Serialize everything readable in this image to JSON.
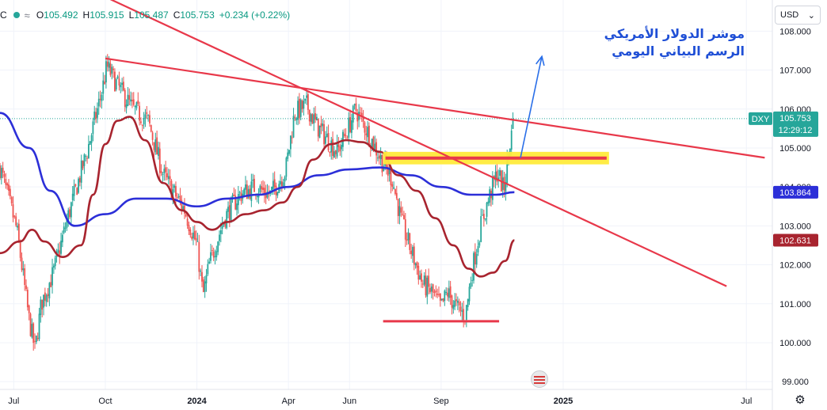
{
  "legend": {
    "symbol": "C",
    "wave": "≈",
    "o_label": "O",
    "o_value": "105.492",
    "h_label": "H",
    "h_value": "105.915",
    "l_label": "L",
    "l_value": "105.487",
    "c_label": "C",
    "c_value": "105.753",
    "change": "+0.234 (+0.22%)"
  },
  "currency_selector": {
    "value": "USD",
    "icon": "chevron-down-icon"
  },
  "annotation": {
    "line1": "موشر الدولار الأمريكي",
    "line2": "الرسم البياني اليومي"
  },
  "price_labels": {
    "symbol_tag": "DXY",
    "last_price": "105.753",
    "countdown": "12:29:12",
    "ma_fast": "103.864",
    "ma_slow": "102.631"
  },
  "colors": {
    "up": "#26a69a",
    "down": "#ef5350",
    "ma_fast": "#2c2fd8",
    "ma_slow": "#a8242f",
    "trendline": "#e8384a",
    "zone_fill": "#ffeb3b",
    "arrow": "#2a6fe8"
  },
  "chart_data": {
    "type": "candlestick",
    "ylim": [
      98.8,
      108.8
    ],
    "yticks": [
      "108.000",
      "107.000",
      "106.000",
      "105.000",
      "104.000",
      "103.000",
      "102.000",
      "101.000",
      "100.000",
      "99.000"
    ],
    "yticks_values": [
      108,
      107,
      106,
      105,
      104,
      103,
      102,
      101,
      100,
      99
    ],
    "xticks": [
      {
        "label": "Jul",
        "x": 0
      },
      {
        "label": "Oct",
        "x": 3
      },
      {
        "label": "2024",
        "x": 6
      },
      {
        "label": "Apr",
        "x": 9
      },
      {
        "label": "Jun",
        "x": 11
      },
      {
        "label": "Sep",
        "x": 14
      },
      {
        "label": "2025",
        "x": 18
      },
      {
        "label": "Jul",
        "x": 24
      }
    ],
    "xticks_note": "x in months since the Jul tick",
    "xlim": [
      -0.45,
      24.85
    ],
    "anchors": [
      [
        -0.45,
        104.5
      ],
      [
        0.1,
        102.9
      ],
      [
        0.5,
        100.6
      ],
      [
        0.7,
        99.8
      ],
      [
        0.9,
        101.0
      ],
      [
        1.3,
        101.8
      ],
      [
        1.8,
        103.3
      ],
      [
        2.4,
        104.9
      ],
      [
        2.9,
        106.5
      ],
      [
        3.05,
        107.1
      ],
      [
        3.4,
        106.6
      ],
      [
        3.9,
        106.0
      ],
      [
        4.4,
        105.7
      ],
      [
        4.9,
        104.3
      ],
      [
        5.6,
        103.4
      ],
      [
        6.0,
        102.5
      ],
      [
        6.2,
        101.2
      ],
      [
        6.4,
        102.0
      ],
      [
        6.9,
        103.2
      ],
      [
        7.4,
        103.8
      ],
      [
        7.9,
        104.0
      ],
      [
        8.4,
        103.8
      ],
      [
        8.9,
        104.4
      ],
      [
        9.2,
        105.9
      ],
      [
        9.6,
        106.1
      ],
      [
        9.9,
        105.6
      ],
      [
        10.2,
        105.3
      ],
      [
        10.6,
        104.9
      ],
      [
        10.9,
        105.4
      ],
      [
        11.2,
        106.0
      ],
      [
        11.6,
        105.4
      ],
      [
        12.1,
        104.6
      ],
      [
        12.4,
        104.2
      ],
      [
        12.7,
        103.1
      ],
      [
        13.0,
        102.4
      ],
      [
        13.4,
        101.5
      ],
      [
        13.7,
        101.3
      ],
      [
        14.0,
        100.9
      ],
      [
        14.2,
        101.3
      ],
      [
        14.5,
        100.9
      ],
      [
        14.8,
        100.7
      ],
      [
        15.0,
        101.8
      ],
      [
        15.3,
        103.0
      ],
      [
        15.6,
        103.8
      ],
      [
        15.85,
        104.4
      ],
      [
        16.05,
        103.9
      ],
      [
        16.25,
        105.1
      ],
      [
        16.4,
        105.75
      ]
    ],
    "last_candle": {
      "open": 105.492,
      "high": 105.915,
      "low": 105.487,
      "close": 105.753
    },
    "series": [
      {
        "name": "",
        "role": "ma_fast",
        "points": [
          [
            -0.45,
            105.9
          ],
          [
            0.5,
            105.0
          ],
          [
            1.2,
            103.9
          ],
          [
            2.0,
            103.0
          ],
          [
            3.0,
            103.3
          ],
          [
            4.0,
            103.7
          ],
          [
            5.0,
            103.7
          ],
          [
            6.0,
            103.5
          ],
          [
            7.0,
            103.7
          ],
          [
            8.0,
            103.8
          ],
          [
            9.0,
            104.0
          ],
          [
            10.0,
            104.3
          ],
          [
            11.0,
            104.45
          ],
          [
            12.0,
            104.5
          ],
          [
            13.0,
            104.3
          ],
          [
            14.0,
            104.0
          ],
          [
            15.0,
            103.8
          ],
          [
            15.8,
            103.8
          ],
          [
            16.4,
            103.864
          ]
        ]
      },
      {
        "name": "",
        "role": "ma_slow",
        "points": [
          [
            -0.45,
            102.3
          ],
          [
            0.2,
            102.6
          ],
          [
            0.6,
            102.9
          ],
          [
            1.0,
            102.6
          ],
          [
            1.6,
            102.2
          ],
          [
            2.2,
            102.5
          ],
          [
            2.6,
            103.8
          ],
          [
            3.0,
            105.1
          ],
          [
            3.4,
            105.7
          ],
          [
            3.8,
            105.8
          ],
          [
            4.3,
            105.2
          ],
          [
            4.9,
            104.1
          ],
          [
            5.5,
            103.4
          ],
          [
            6.0,
            103.1
          ],
          [
            6.5,
            102.9
          ],
          [
            7.0,
            103.1
          ],
          [
            7.6,
            103.3
          ],
          [
            8.2,
            103.4
          ],
          [
            8.8,
            103.6
          ],
          [
            9.3,
            104.0
          ],
          [
            9.8,
            104.7
          ],
          [
            10.4,
            105.1
          ],
          [
            10.9,
            105.2
          ],
          [
            11.4,
            105.15
          ],
          [
            12.0,
            104.9
          ],
          [
            12.6,
            104.3
          ],
          [
            13.2,
            103.9
          ],
          [
            13.8,
            103.2
          ],
          [
            14.4,
            102.5
          ],
          [
            14.9,
            101.9
          ],
          [
            15.3,
            101.7
          ],
          [
            15.7,
            101.8
          ],
          [
            16.1,
            102.1
          ],
          [
            16.4,
            102.631
          ]
        ]
      }
    ],
    "drawings": {
      "trendline_long": [
        [
          3.0,
          107.3
        ],
        [
          24.6,
          104.75
        ]
      ],
      "trendline_steep": [
        [
          1.3,
          109.5
        ],
        [
          23.35,
          101.45
        ]
      ],
      "resistance_zone": {
        "x": [
          12.1,
          19.5
        ],
        "y": [
          104.62,
          104.86
        ]
      },
      "support_line": {
        "x": [
          12.1,
          15.9
        ],
        "y": 100.55
      },
      "arrow": [
        [
          16.6,
          104.75
        ],
        [
          17.3,
          107.35
        ]
      ]
    }
  }
}
